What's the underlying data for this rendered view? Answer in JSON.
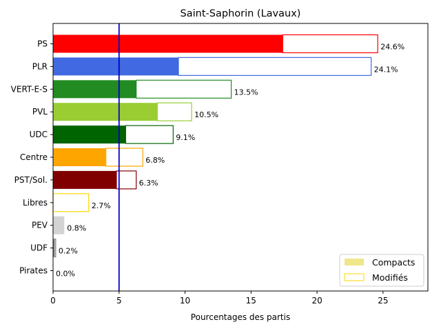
{
  "chart_data": {
    "type": "bar",
    "orientation": "horizontal",
    "title": "Saint-Saphorin (Lavaux)",
    "xlabel": "Pourcentages des partis",
    "ylabel": "",
    "xlim": [
      0,
      28.4
    ],
    "xticks": [
      "0",
      "5",
      "10",
      "15",
      "20",
      "25"
    ],
    "reference_line": {
      "x": 5,
      "color": "#0000cc"
    },
    "categories": [
      "PS",
      "PLR",
      "VERT-E-S",
      "PVL",
      "UDC",
      "Centre",
      "PST/Sol.",
      "Libres",
      "PEV",
      "UDF",
      "Pirates"
    ],
    "colors": [
      "#ff0000",
      "#4169e1",
      "#228b22",
      "#9acd32",
      "#006400",
      "#ffa500",
      "#800000",
      "#ffd700",
      "#d3d3d3",
      "#808080",
      "#000000"
    ],
    "series": [
      {
        "name": "Compacts",
        "values": [
          17.4,
          9.5,
          6.3,
          7.9,
          5.5,
          4.0,
          4.8,
          0.0,
          0.85,
          0.1,
          0.0
        ]
      },
      {
        "name": "Modifiés",
        "values": [
          7.2,
          14.6,
          7.2,
          2.6,
          3.6,
          2.8,
          1.5,
          2.7,
          0.0,
          0.1,
          0.0
        ]
      }
    ],
    "total_labels": [
      "24.6%",
      "24.1%",
      "13.5%",
      "10.5%",
      "9.1%",
      "6.8%",
      "6.3%",
      "2.7%",
      "0.8%",
      "0.2%",
      "0.0%"
    ],
    "legend": {
      "position": "lower-right",
      "entries": [
        {
          "label": "Compacts",
          "style": "filled",
          "color": "#f0e68c"
        },
        {
          "label": "Modifiés",
          "style": "outline",
          "color": "#ffd700"
        }
      ]
    }
  }
}
